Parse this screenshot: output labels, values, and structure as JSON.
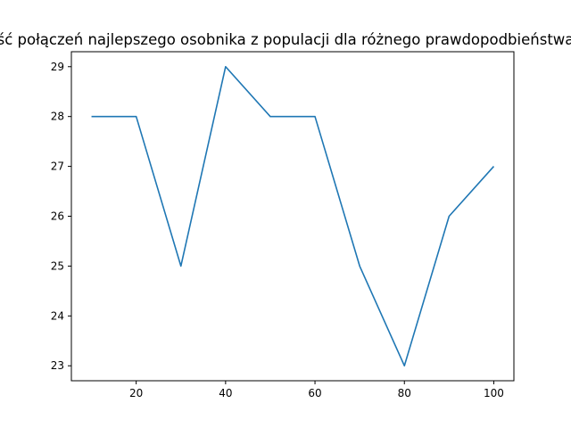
{
  "chart_data": {
    "type": "line",
    "title": "ść połączeń najlepszego osobnika z populacji dla różnego prawdopodbieństwa",
    "xlabel": "",
    "ylabel": "",
    "x": [
      10,
      20,
      30,
      40,
      50,
      60,
      70,
      80,
      90,
      100
    ],
    "series": [
      {
        "values": [
          28,
          28,
          25,
          29,
          28,
          28,
          25,
          23,
          26,
          27
        ],
        "color": "#1f77b4"
      }
    ],
    "xlim": [
      5.5,
      104.5
    ],
    "ylim": [
      22.7,
      29.3
    ],
    "xticks": [
      20,
      40,
      60,
      80,
      100
    ],
    "yticks": [
      23,
      24,
      25,
      26,
      27,
      28,
      29
    ],
    "grid": false,
    "legend": "none"
  }
}
